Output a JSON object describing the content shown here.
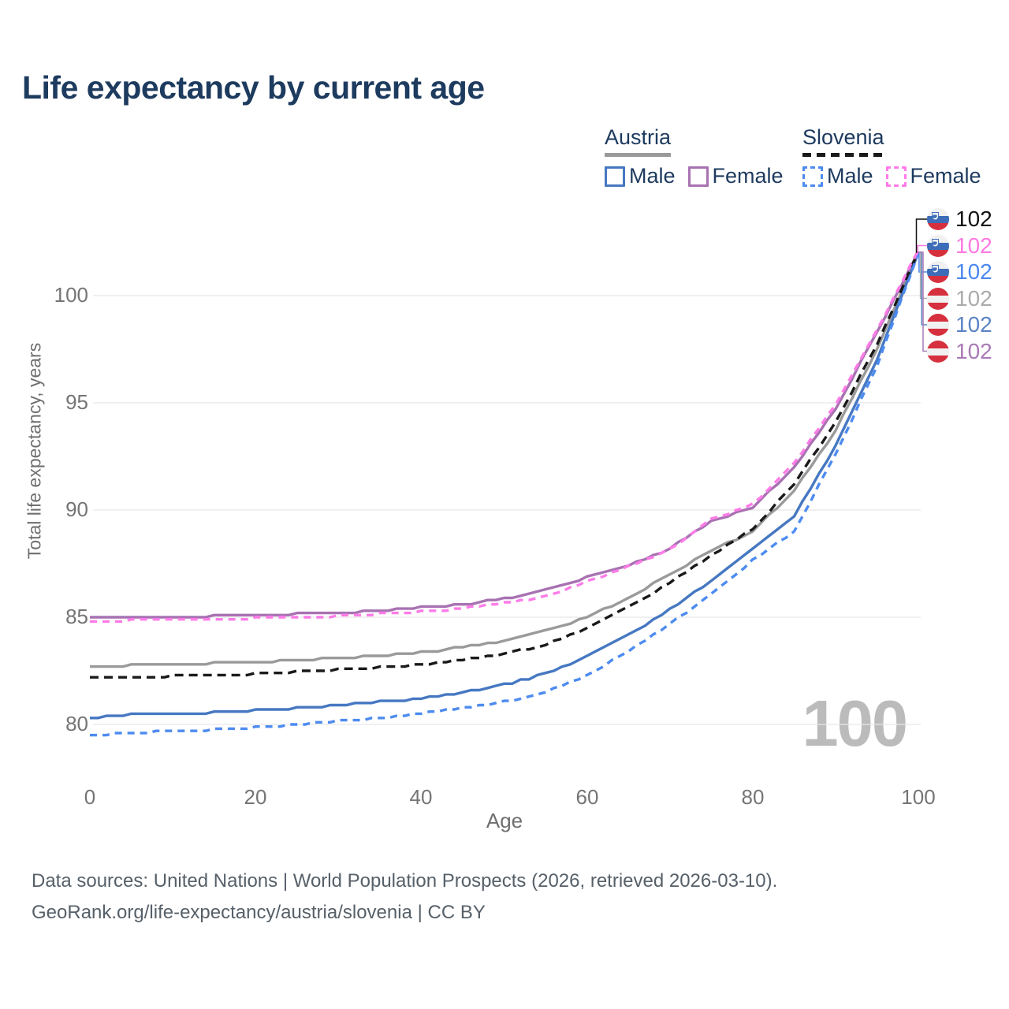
{
  "title": "Life expectancy by current age",
  "watermark": "100",
  "legend": {
    "groups": [
      {
        "label": "Austria",
        "line": {
          "color": "#9a9a9a",
          "dashed": false
        },
        "items": [
          {
            "label": "Male",
            "color": "#4678c2",
            "dashed": false
          },
          {
            "label": "Female",
            "color": "#a872b2",
            "dashed": false
          }
        ]
      },
      {
        "label": "Slovenia",
        "line": {
          "color": "#1a1a1a",
          "dashed": true
        },
        "items": [
          {
            "label": "Male",
            "color": "#4d8bf0",
            "dashed": true
          },
          {
            "label": "Female",
            "color": "#ff7ce8",
            "dashed": true
          }
        ]
      }
    ]
  },
  "footer": {
    "line1": "Data sources: United Nations | World Population Prospects (2026, retrieved 2026-03-10).",
    "line2": "GeoRank.org/life-expectancy/austria/slovenia | CC BY"
  },
  "chart_data": {
    "type": "line",
    "title": "Life expectancy by current age",
    "xlabel": "Age",
    "ylabel": "Total life expectancy, years",
    "x_ticks": [
      0,
      20,
      40,
      60,
      80,
      100
    ],
    "y_ticks": [
      80,
      85,
      90,
      95,
      100
    ],
    "xlim": [
      0,
      100
    ],
    "ylim": [
      79,
      103
    ],
    "grid": "horizontal",
    "x": [
      0,
      5,
      10,
      15,
      20,
      25,
      30,
      35,
      40,
      45,
      50,
      55,
      60,
      65,
      70,
      75,
      80,
      85,
      90,
      95,
      100
    ],
    "series": [
      {
        "name": "Austria Both sexes",
        "country": "austria",
        "color": "#9a9a9a",
        "dashed": false,
        "values": [
          82.65,
          82.75,
          82.8,
          82.85,
          82.9,
          83.0,
          83.1,
          83.2,
          83.35,
          83.6,
          83.9,
          84.35,
          85.0,
          85.9,
          87.0,
          88.1,
          89.0,
          90.9,
          93.7,
          97.5,
          102.0
        ]
      },
      {
        "name": "Austria Male",
        "country": "austria",
        "color": "#4678c2",
        "dashed": false,
        "values": [
          80.3,
          80.45,
          80.5,
          80.55,
          80.65,
          80.75,
          80.9,
          81.05,
          81.2,
          81.5,
          81.85,
          82.35,
          83.15,
          84.15,
          85.35,
          86.7,
          88.2,
          89.7,
          93.0,
          97.0,
          102.0
        ]
      },
      {
        "name": "Austria Female",
        "country": "austria",
        "color": "#a872b2",
        "dashed": false,
        "values": [
          84.95,
          85.0,
          85.0,
          85.05,
          85.1,
          85.15,
          85.2,
          85.3,
          85.45,
          85.6,
          85.85,
          86.25,
          86.85,
          87.4,
          88.2,
          89.5,
          90.1,
          92.0,
          94.7,
          98.3,
          102.0
        ]
      },
      {
        "name": "Slovenia Both sexes",
        "country": "slovenia",
        "color": "#1a1a1a",
        "dashed": true,
        "values": [
          82.15,
          82.2,
          82.25,
          82.3,
          82.35,
          82.45,
          82.55,
          82.65,
          82.8,
          83.0,
          83.3,
          83.7,
          84.5,
          85.45,
          86.6,
          87.9,
          89.1,
          91.2,
          94.1,
          97.7,
          102.05
        ]
      },
      {
        "name": "Slovenia Male",
        "country": "slovenia",
        "color": "#4d8bf0",
        "dashed": true,
        "values": [
          79.5,
          79.6,
          79.7,
          79.75,
          79.85,
          80.0,
          80.15,
          80.3,
          80.5,
          80.75,
          81.05,
          81.5,
          82.3,
          83.4,
          84.7,
          86.05,
          87.65,
          89.0,
          92.6,
          96.7,
          102.0
        ]
      },
      {
        "name": "Slovenia Female",
        "country": "slovenia",
        "color": "#ff7ce8",
        "dashed": true,
        "values": [
          84.8,
          84.85,
          84.9,
          84.9,
          84.95,
          85.0,
          85.05,
          85.15,
          85.25,
          85.4,
          85.65,
          85.95,
          86.65,
          87.35,
          88.15,
          89.55,
          90.25,
          92.2,
          94.9,
          98.4,
          102.1
        ]
      }
    ],
    "end_labels": [
      {
        "series": "Slovenia Both sexes",
        "country": "slovenia",
        "value": "102",
        "color": "#111111"
      },
      {
        "series": "Slovenia Female",
        "country": "slovenia",
        "value": "102",
        "color": "#ff79e1"
      },
      {
        "series": "Slovenia Male",
        "country": "slovenia",
        "value": "102",
        "color": "#4b87f0"
      },
      {
        "series": "Austria Both sexes",
        "country": "austria",
        "value": "102",
        "color": "#ababab"
      },
      {
        "series": "Austria Male",
        "country": "austria",
        "value": "102",
        "color": "#5b84c4"
      },
      {
        "series": "Austria Female",
        "country": "austria",
        "value": "102",
        "color": "#a879b5"
      }
    ],
    "flag_colors": {
      "austria": {
        "s1": "#d6303e",
        "s2": "#f1f1f1",
        "s3": "#d6303e"
      },
      "slovenia": {
        "s1": "#f1f1f1",
        "s2": "#3d6db8",
        "s3": "#d6303e"
      }
    }
  }
}
